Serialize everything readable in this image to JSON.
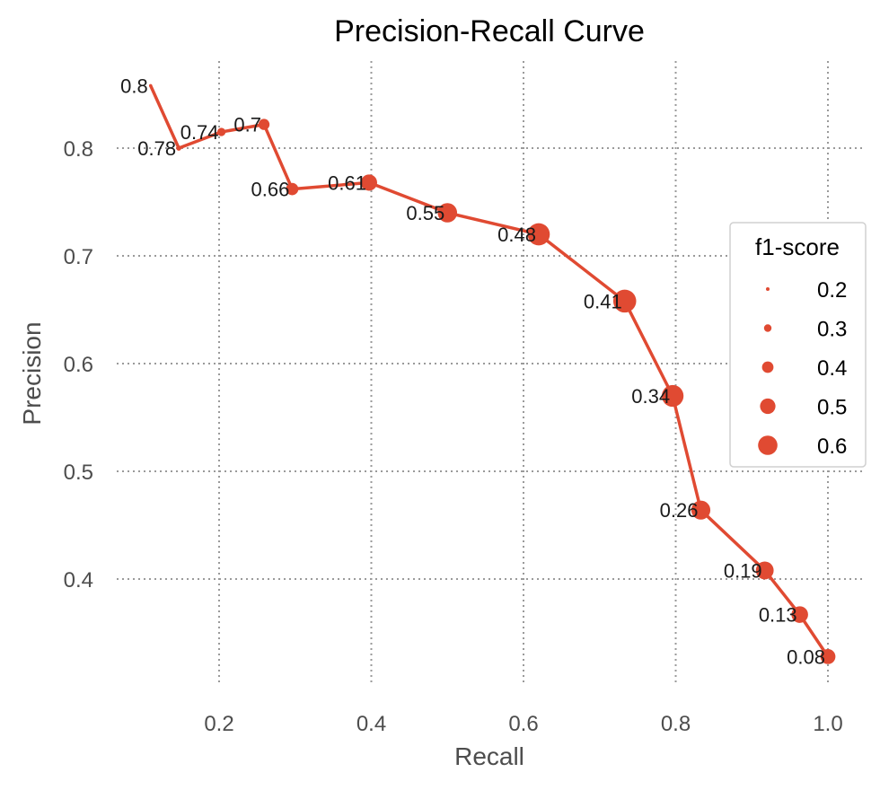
{
  "chart_data": {
    "type": "scatter",
    "title": "Precision-Recall Curve",
    "xlabel": "Recall",
    "ylabel": "Precision",
    "xlim": [
      0.065,
      1.0
    ],
    "ylim": [
      0.3,
      0.885
    ],
    "x_ticks": [
      0.2,
      0.4,
      0.6,
      0.8,
      1.0
    ],
    "x_tick_labels": [
      "0.2",
      "0.4",
      "0.6",
      "0.8",
      "1.0"
    ],
    "y_ticks": [
      0.4,
      0.5,
      0.6,
      0.7,
      0.8
    ],
    "y_tick_labels": [
      "0.4",
      "0.5",
      "0.6",
      "0.7",
      "0.8"
    ],
    "grid": true,
    "color": "#e04a32",
    "point_label_meaning": "threshold",
    "points": [
      {
        "recall": 0.11,
        "precision": 0.858,
        "f1": 0.19,
        "label": "0.8"
      },
      {
        "recall": 0.147,
        "precision": 0.8,
        "f1": 0.24,
        "label": "0.78"
      },
      {
        "recall": 0.203,
        "precision": 0.815,
        "f1": 0.32,
        "label": "0.74"
      },
      {
        "recall": 0.259,
        "precision": 0.822,
        "f1": 0.39,
        "label": "0.7"
      },
      {
        "recall": 0.296,
        "precision": 0.762,
        "f1": 0.42,
        "label": "0.66"
      },
      {
        "recall": 0.397,
        "precision": 0.768,
        "f1": 0.52,
        "label": "0.61"
      },
      {
        "recall": 0.5,
        "precision": 0.74,
        "f1": 0.6,
        "label": "0.55"
      },
      {
        "recall": 0.62,
        "precision": 0.72,
        "f1": 0.67,
        "label": "0.48"
      },
      {
        "recall": 0.733,
        "precision": 0.658,
        "f1": 0.69,
        "label": "0.41"
      },
      {
        "recall": 0.796,
        "precision": 0.57,
        "f1": 0.66,
        "label": "0.34"
      },
      {
        "recall": 0.833,
        "precision": 0.464,
        "f1": 0.59,
        "label": "0.26"
      },
      {
        "recall": 0.917,
        "precision": 0.408,
        "f1": 0.56,
        "label": "0.19"
      },
      {
        "recall": 0.963,
        "precision": 0.367,
        "f1": 0.53,
        "label": "0.13"
      },
      {
        "recall": 1.0,
        "precision": 0.328,
        "f1": 0.49,
        "label": "0.08"
      }
    ],
    "legend": {
      "title": "f1-score",
      "placement": "center-right",
      "entries": [
        {
          "label": "0.2",
          "f1": 0.2
        },
        {
          "label": "0.3",
          "f1": 0.3
        },
        {
          "label": "0.4",
          "f1": 0.4
        },
        {
          "label": "0.5",
          "f1": 0.5
        },
        {
          "label": "0.6",
          "f1": 0.6
        }
      ]
    }
  }
}
